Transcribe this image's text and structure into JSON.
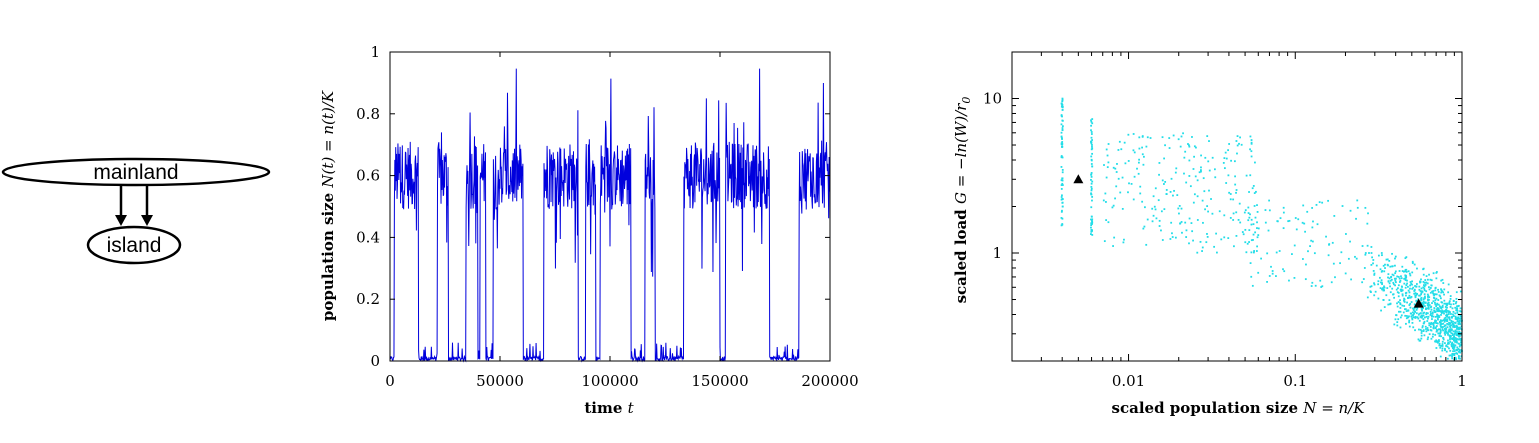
{
  "diagram": {
    "nodes": [
      {
        "label": "mainland"
      },
      {
        "label": "island"
      }
    ],
    "edges": [
      {
        "from": "mainland",
        "to": "island"
      },
      {
        "from": "mainland",
        "to": "island"
      }
    ]
  },
  "chart_data": [
    {
      "type": "line",
      "xlabel": "time t",
      "ylabel": "population size N(t) = n(t)/K",
      "xlim": [
        0,
        200000
      ],
      "ylim": [
        0,
        1
      ],
      "xticks": [
        0,
        50000,
        100000,
        150000,
        200000
      ],
      "xtick_labels": [
        "0",
        "50000",
        "100000",
        "150000",
        "200000"
      ],
      "yticks": [
        0,
        0.2,
        0.4,
        0.6,
        0.8,
        1
      ],
      "ytick_labels": [
        "0",
        "0.2",
        "0.4",
        "0.6",
        "0.8",
        "1"
      ],
      "color": "#0000dd",
      "high_state_mean": 0.6,
      "segments": [
        {
          "t_start": 0,
          "t_end": 2000,
          "state": "low"
        },
        {
          "t_start": 2000,
          "t_end": 13000,
          "state": "high"
        },
        {
          "t_start": 13000,
          "t_end": 21500,
          "state": "low"
        },
        {
          "t_start": 21500,
          "t_end": 26500,
          "state": "high"
        },
        {
          "t_start": 26500,
          "t_end": 34500,
          "state": "low"
        },
        {
          "t_start": 34500,
          "t_end": 40000,
          "state": "high"
        },
        {
          "t_start": 40000,
          "t_end": 41000,
          "state": "low"
        },
        {
          "t_start": 41000,
          "t_end": 43500,
          "state": "high"
        },
        {
          "t_start": 43500,
          "t_end": 47000,
          "state": "low"
        },
        {
          "t_start": 47000,
          "t_end": 60500,
          "state": "high"
        },
        {
          "t_start": 60500,
          "t_end": 70000,
          "state": "low"
        },
        {
          "t_start": 70000,
          "t_end": 85500,
          "state": "high"
        },
        {
          "t_start": 85500,
          "t_end": 89000,
          "state": "low"
        },
        {
          "t_start": 89000,
          "t_end": 93500,
          "state": "high"
        },
        {
          "t_start": 93500,
          "t_end": 95500,
          "state": "low"
        },
        {
          "t_start": 95500,
          "t_end": 109500,
          "state": "high"
        },
        {
          "t_start": 109500,
          "t_end": 116000,
          "state": "low"
        },
        {
          "t_start": 116000,
          "t_end": 120500,
          "state": "high"
        },
        {
          "t_start": 120500,
          "t_end": 133500,
          "state": "low"
        },
        {
          "t_start": 133500,
          "t_end": 150000,
          "state": "high"
        },
        {
          "t_start": 150000,
          "t_end": 152500,
          "state": "low"
        },
        {
          "t_start": 152500,
          "t_end": 172500,
          "state": "high"
        },
        {
          "t_start": 172500,
          "t_end": 186000,
          "state": "low"
        },
        {
          "t_start": 186000,
          "t_end": 200000,
          "state": "high"
        }
      ]
    },
    {
      "type": "scatter",
      "xscale": "log",
      "yscale": "log",
      "xlabel": "scaled population size N = n/K",
      "ylabel": "scaled load G = −ln(W)/r0",
      "xlim": [
        0.002,
        1
      ],
      "ylim": [
        0.2,
        20
      ],
      "xticks": [
        0.01,
        0.1,
        1
      ],
      "xtick_labels": [
        "0.01",
        "0.1",
        "1"
      ],
      "yticks": [
        1,
        10
      ],
      "ytick_labels": [
        "1",
        "10"
      ],
      "color": "#22dde8",
      "clusters": [
        {
          "x": 0.004,
          "y_range": [
            1.5,
            10
          ],
          "count": 70
        },
        {
          "x": 0.006,
          "y_range": [
            1.3,
            7.5
          ],
          "count": 60
        },
        {
          "x_range": [
            0.007,
            0.06
          ],
          "y_range": [
            1.0,
            6.0
          ],
          "count": 260
        },
        {
          "x_range": [
            0.05,
            0.3
          ],
          "y_range": [
            0.6,
            2.2
          ],
          "count": 110
        },
        {
          "x_range": [
            0.25,
            1.0
          ],
          "y_range": [
            0.18,
            1.0
          ],
          "count": 900
        }
      ],
      "markers": [
        {
          "x": 0.005,
          "y": 3.0,
          "shape": "triangle"
        },
        {
          "x": 0.55,
          "y": 0.47,
          "shape": "triangle"
        }
      ]
    }
  ]
}
